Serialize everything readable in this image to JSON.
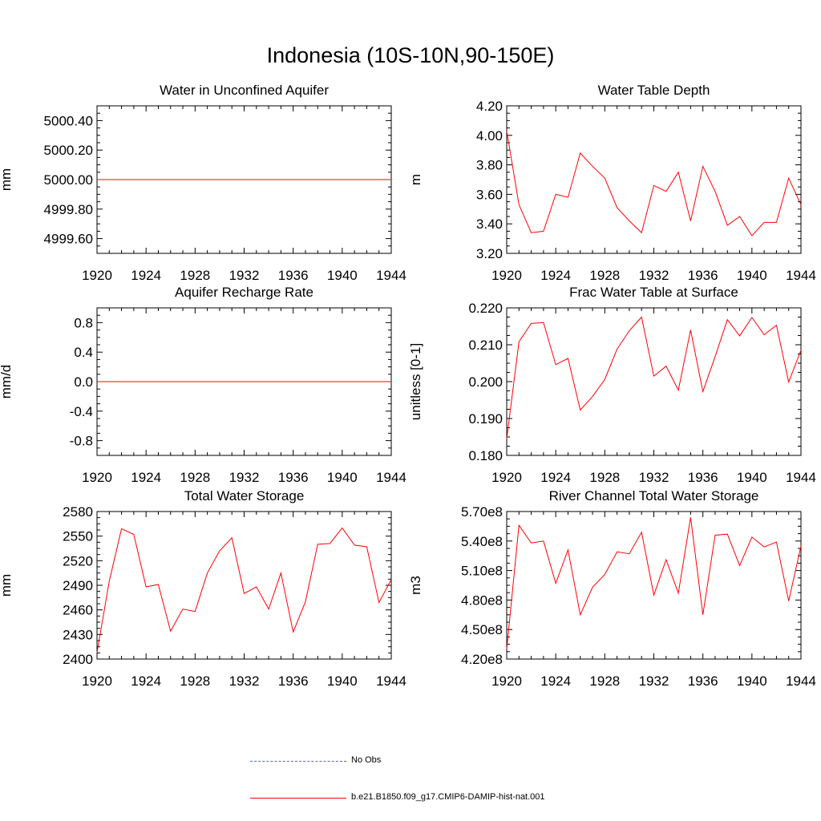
{
  "title": "Indonesia (10S-10N,90-150E)",
  "legend": [
    {
      "label": "No Obs",
      "color": "#5566cc",
      "style": "dashed"
    },
    {
      "label": "b.e21.B1850.f09_g17.CMIP6-DAMIP-hist-nat.001",
      "color": "#ff0000",
      "style": "solid"
    }
  ],
  "chart_data": [
    {
      "type": "line",
      "title": "Water in Unconfined Aquifer",
      "ylabel": "mm",
      "xlim": [
        1920,
        1944
      ],
      "ylim": [
        4999.5,
        5000.5
      ],
      "xticks": [
        "1920",
        "1924",
        "1928",
        "1932",
        "1936",
        "1940",
        "1944"
      ],
      "yticks": [
        {
          "v": 4999.6,
          "l": "4999.60"
        },
        {
          "v": 4999.8,
          "l": "4999.80"
        },
        {
          "v": 5000.0,
          "l": "5000.00"
        },
        {
          "v": 5000.2,
          "l": "5000.20"
        },
        {
          "v": 5000.4,
          "l": "5000.40"
        }
      ],
      "x": [
        1920,
        1921,
        1922,
        1923,
        1924,
        1925,
        1926,
        1927,
        1928,
        1929,
        1930,
        1931,
        1932,
        1933,
        1934,
        1935,
        1936,
        1937,
        1938,
        1939,
        1940,
        1941,
        1942,
        1943,
        1944
      ],
      "series": [
        {
          "color": "#ff0000",
          "values": [
            5000,
            5000,
            5000,
            5000,
            5000,
            5000,
            5000,
            5000,
            5000,
            5000,
            5000,
            5000,
            5000,
            5000,
            5000,
            5000,
            5000,
            5000,
            5000,
            5000,
            5000,
            5000,
            5000,
            5000,
            5000
          ]
        }
      ]
    },
    {
      "type": "line",
      "title": "Water Table Depth",
      "ylabel": "m",
      "xlim": [
        1920,
        1944
      ],
      "ylim": [
        3.2,
        4.2
      ],
      "xticks": [
        "1920",
        "1924",
        "1928",
        "1932",
        "1936",
        "1940",
        "1944"
      ],
      "yticks": [
        {
          "v": 3.2,
          "l": "3.20"
        },
        {
          "v": 3.4,
          "l": "3.40"
        },
        {
          "v": 3.6,
          "l": "3.60"
        },
        {
          "v": 3.8,
          "l": "3.80"
        },
        {
          "v": 4.0,
          "l": "4.00"
        },
        {
          "v": 4.2,
          "l": "4.20"
        }
      ],
      "x": [
        1920,
        1921,
        1922,
        1923,
        1924,
        1925,
        1926,
        1927,
        1928,
        1929,
        1930,
        1931,
        1932,
        1933,
        1934,
        1935,
        1936,
        1937,
        1938,
        1939,
        1940,
        1941,
        1942,
        1943,
        1944
      ],
      "series": [
        {
          "color": "#ff0000",
          "values": [
            4.03,
            3.53,
            3.34,
            3.35,
            3.6,
            3.58,
            3.88,
            3.79,
            3.71,
            3.51,
            3.42,
            3.34,
            3.66,
            3.62,
            3.75,
            3.42,
            3.79,
            3.62,
            3.39,
            3.45,
            3.32,
            3.41,
            3.41,
            3.71,
            3.53
          ]
        }
      ]
    },
    {
      "type": "line",
      "title": "Aquifer Recharge Rate",
      "ylabel": "mm/d",
      "xlim": [
        1920,
        1944
      ],
      "ylim": [
        -1.0,
        1.0
      ],
      "xticks": [
        "1920",
        "1924",
        "1928",
        "1932",
        "1936",
        "1940",
        "1944"
      ],
      "yticks": [
        {
          "v": -0.8,
          "l": "-0.8"
        },
        {
          "v": -0.4,
          "l": "-0.4"
        },
        {
          "v": 0.0,
          "l": "0.0"
        },
        {
          "v": 0.4,
          "l": "0.4"
        },
        {
          "v": 0.8,
          "l": "0.8"
        }
      ],
      "x": [
        1920,
        1921,
        1922,
        1923,
        1924,
        1925,
        1926,
        1927,
        1928,
        1929,
        1930,
        1931,
        1932,
        1933,
        1934,
        1935,
        1936,
        1937,
        1938,
        1939,
        1940,
        1941,
        1942,
        1943,
        1944
      ],
      "series": [
        {
          "color": "#ff0000",
          "values": [
            0,
            0,
            0,
            0,
            0,
            0,
            0,
            0,
            0,
            0,
            0,
            0,
            0,
            0,
            0,
            0,
            0,
            0,
            0,
            0,
            0,
            0,
            0,
            0,
            0
          ]
        }
      ]
    },
    {
      "type": "line",
      "title": "Frac Water Table at Surface",
      "ylabel": "unitless [0-1]",
      "xlim": [
        1920,
        1944
      ],
      "ylim": [
        0.18,
        0.22
      ],
      "xticks": [
        "1920",
        "1924",
        "1928",
        "1932",
        "1936",
        "1940",
        "1944"
      ],
      "yticks": [
        {
          "v": 0.18,
          "l": "0.180"
        },
        {
          "v": 0.19,
          "l": "0.190"
        },
        {
          "v": 0.2,
          "l": "0.200"
        },
        {
          "v": 0.21,
          "l": "0.210"
        },
        {
          "v": 0.22,
          "l": "0.220"
        }
      ],
      "x": [
        1920,
        1921,
        1922,
        1923,
        1924,
        1925,
        1926,
        1927,
        1928,
        1929,
        1930,
        1931,
        1932,
        1933,
        1934,
        1935,
        1936,
        1937,
        1938,
        1939,
        1940,
        1941,
        1942,
        1943,
        1944
      ],
      "series": [
        {
          "color": "#ff0000",
          "values": [
            0.1845,
            0.2108,
            0.2158,
            0.216,
            0.2046,
            0.2063,
            0.1923,
            0.196,
            0.2006,
            0.2088,
            0.2138,
            0.2175,
            0.2015,
            0.2042,
            0.1977,
            0.214,
            0.1973,
            0.2068,
            0.2168,
            0.2124,
            0.2174,
            0.2127,
            0.2153,
            0.1999,
            0.2085
          ]
        }
      ]
    },
    {
      "type": "line",
      "title": "Total Water Storage",
      "ylabel": "mm",
      "xlim": [
        1920,
        1944
      ],
      "ylim": [
        2400,
        2580
      ],
      "xticks": [
        "1920",
        "1924",
        "1928",
        "1932",
        "1936",
        "1940",
        "1944"
      ],
      "yticks": [
        {
          "v": 2400,
          "l": "2400"
        },
        {
          "v": 2430,
          "l": "2430"
        },
        {
          "v": 2460,
          "l": "2460"
        },
        {
          "v": 2490,
          "l": "2490"
        },
        {
          "v": 2520,
          "l": "2520"
        },
        {
          "v": 2550,
          "l": "2550"
        },
        {
          "v": 2580,
          "l": "2580"
        }
      ],
      "x": [
        1920,
        1921,
        1922,
        1923,
        1924,
        1925,
        1926,
        1927,
        1928,
        1929,
        1930,
        1931,
        1932,
        1933,
        1934,
        1935,
        1936,
        1937,
        1938,
        1939,
        1940,
        1941,
        1942,
        1943,
        1944
      ],
      "series": [
        {
          "color": "#ff0000",
          "values": [
            2408,
            2495,
            2559,
            2552,
            2488,
            2491,
            2434,
            2461,
            2458,
            2505,
            2532,
            2548,
            2480,
            2488,
            2461,
            2505,
            2433,
            2470,
            2540,
            2541,
            2560,
            2539,
            2537,
            2469,
            2497
          ]
        }
      ]
    },
    {
      "type": "line",
      "title": "River Channel Total Water Storage",
      "ylabel": "m3",
      "xlim": [
        1920,
        1944
      ],
      "ylim": [
        420000000.0,
        570000000.0
      ],
      "xticks": [
        "1920",
        "1924",
        "1928",
        "1932",
        "1936",
        "1940",
        "1944"
      ],
      "yticks": [
        {
          "v": 420000000.0,
          "l": "4.20e8"
        },
        {
          "v": 450000000.0,
          "l": "4.50e8"
        },
        {
          "v": 480000000.0,
          "l": "4.80e8"
        },
        {
          "v": 510000000.0,
          "l": "5.10e8"
        },
        {
          "v": 540000000.0,
          "l": "5.40e8"
        },
        {
          "v": 570000000.0,
          "l": "5.70e8"
        }
      ],
      "x": [
        1920,
        1921,
        1922,
        1923,
        1924,
        1925,
        1926,
        1927,
        1928,
        1929,
        1930,
        1931,
        1932,
        1933,
        1934,
        1935,
        1936,
        1937,
        1938,
        1939,
        1940,
        1941,
        1942,
        1943,
        1944
      ],
      "series": [
        {
          "color": "#ff0000",
          "values": [
            430000000.0,
            556000000.0,
            538000000.0,
            540000000.0,
            497000000.0,
            531000000.0,
            465000000.0,
            493000000.0,
            506000000.0,
            529000000.0,
            527000000.0,
            549000000.0,
            485000000.0,
            521000000.0,
            487000000.0,
            564000000.0,
            465000000.0,
            546000000.0,
            547000000.0,
            515000000.0,
            544000000.0,
            534000000.0,
            539000000.0,
            479000000.0,
            535000000.0
          ]
        }
      ]
    }
  ]
}
